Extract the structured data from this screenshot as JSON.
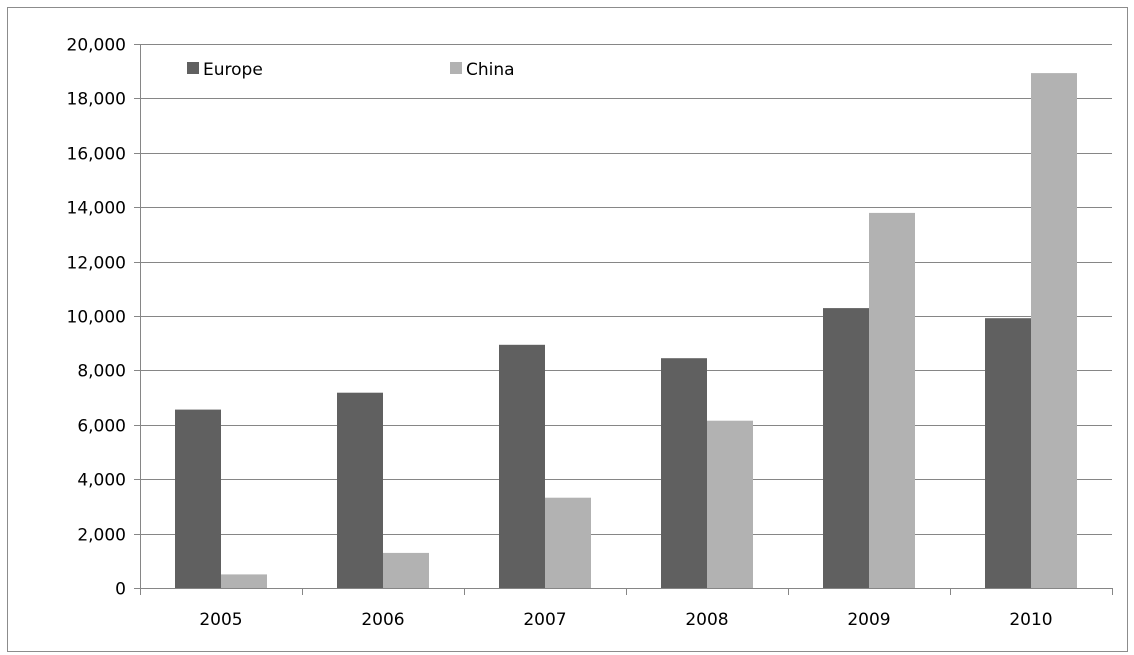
{
  "chart_data": {
    "type": "bar",
    "title": "",
    "xlabel": "",
    "ylabel": "",
    "categories": [
      "2005",
      "2006",
      "2007",
      "2008",
      "2009",
      "2010"
    ],
    "series": [
      {
        "name": "Europe",
        "color": "#606060",
        "values": [
          6560,
          7180,
          8940,
          8450,
          10290,
          9920
        ]
      },
      {
        "name": "China",
        "color": "#b2b2b2",
        "values": [
          500,
          1290,
          3320,
          6150,
          13790,
          18930
        ]
      }
    ],
    "ylim": [
      0,
      20000
    ],
    "yticks": [
      "0",
      "2,000",
      "4,000",
      "6,000",
      "8,000",
      "10,000",
      "12,000",
      "14,000",
      "16,000",
      "18,000",
      "20,000"
    ],
    "grid": true,
    "legend_position": "top-left",
    "gridline_color": "#868686",
    "axis_color": "#868686"
  }
}
